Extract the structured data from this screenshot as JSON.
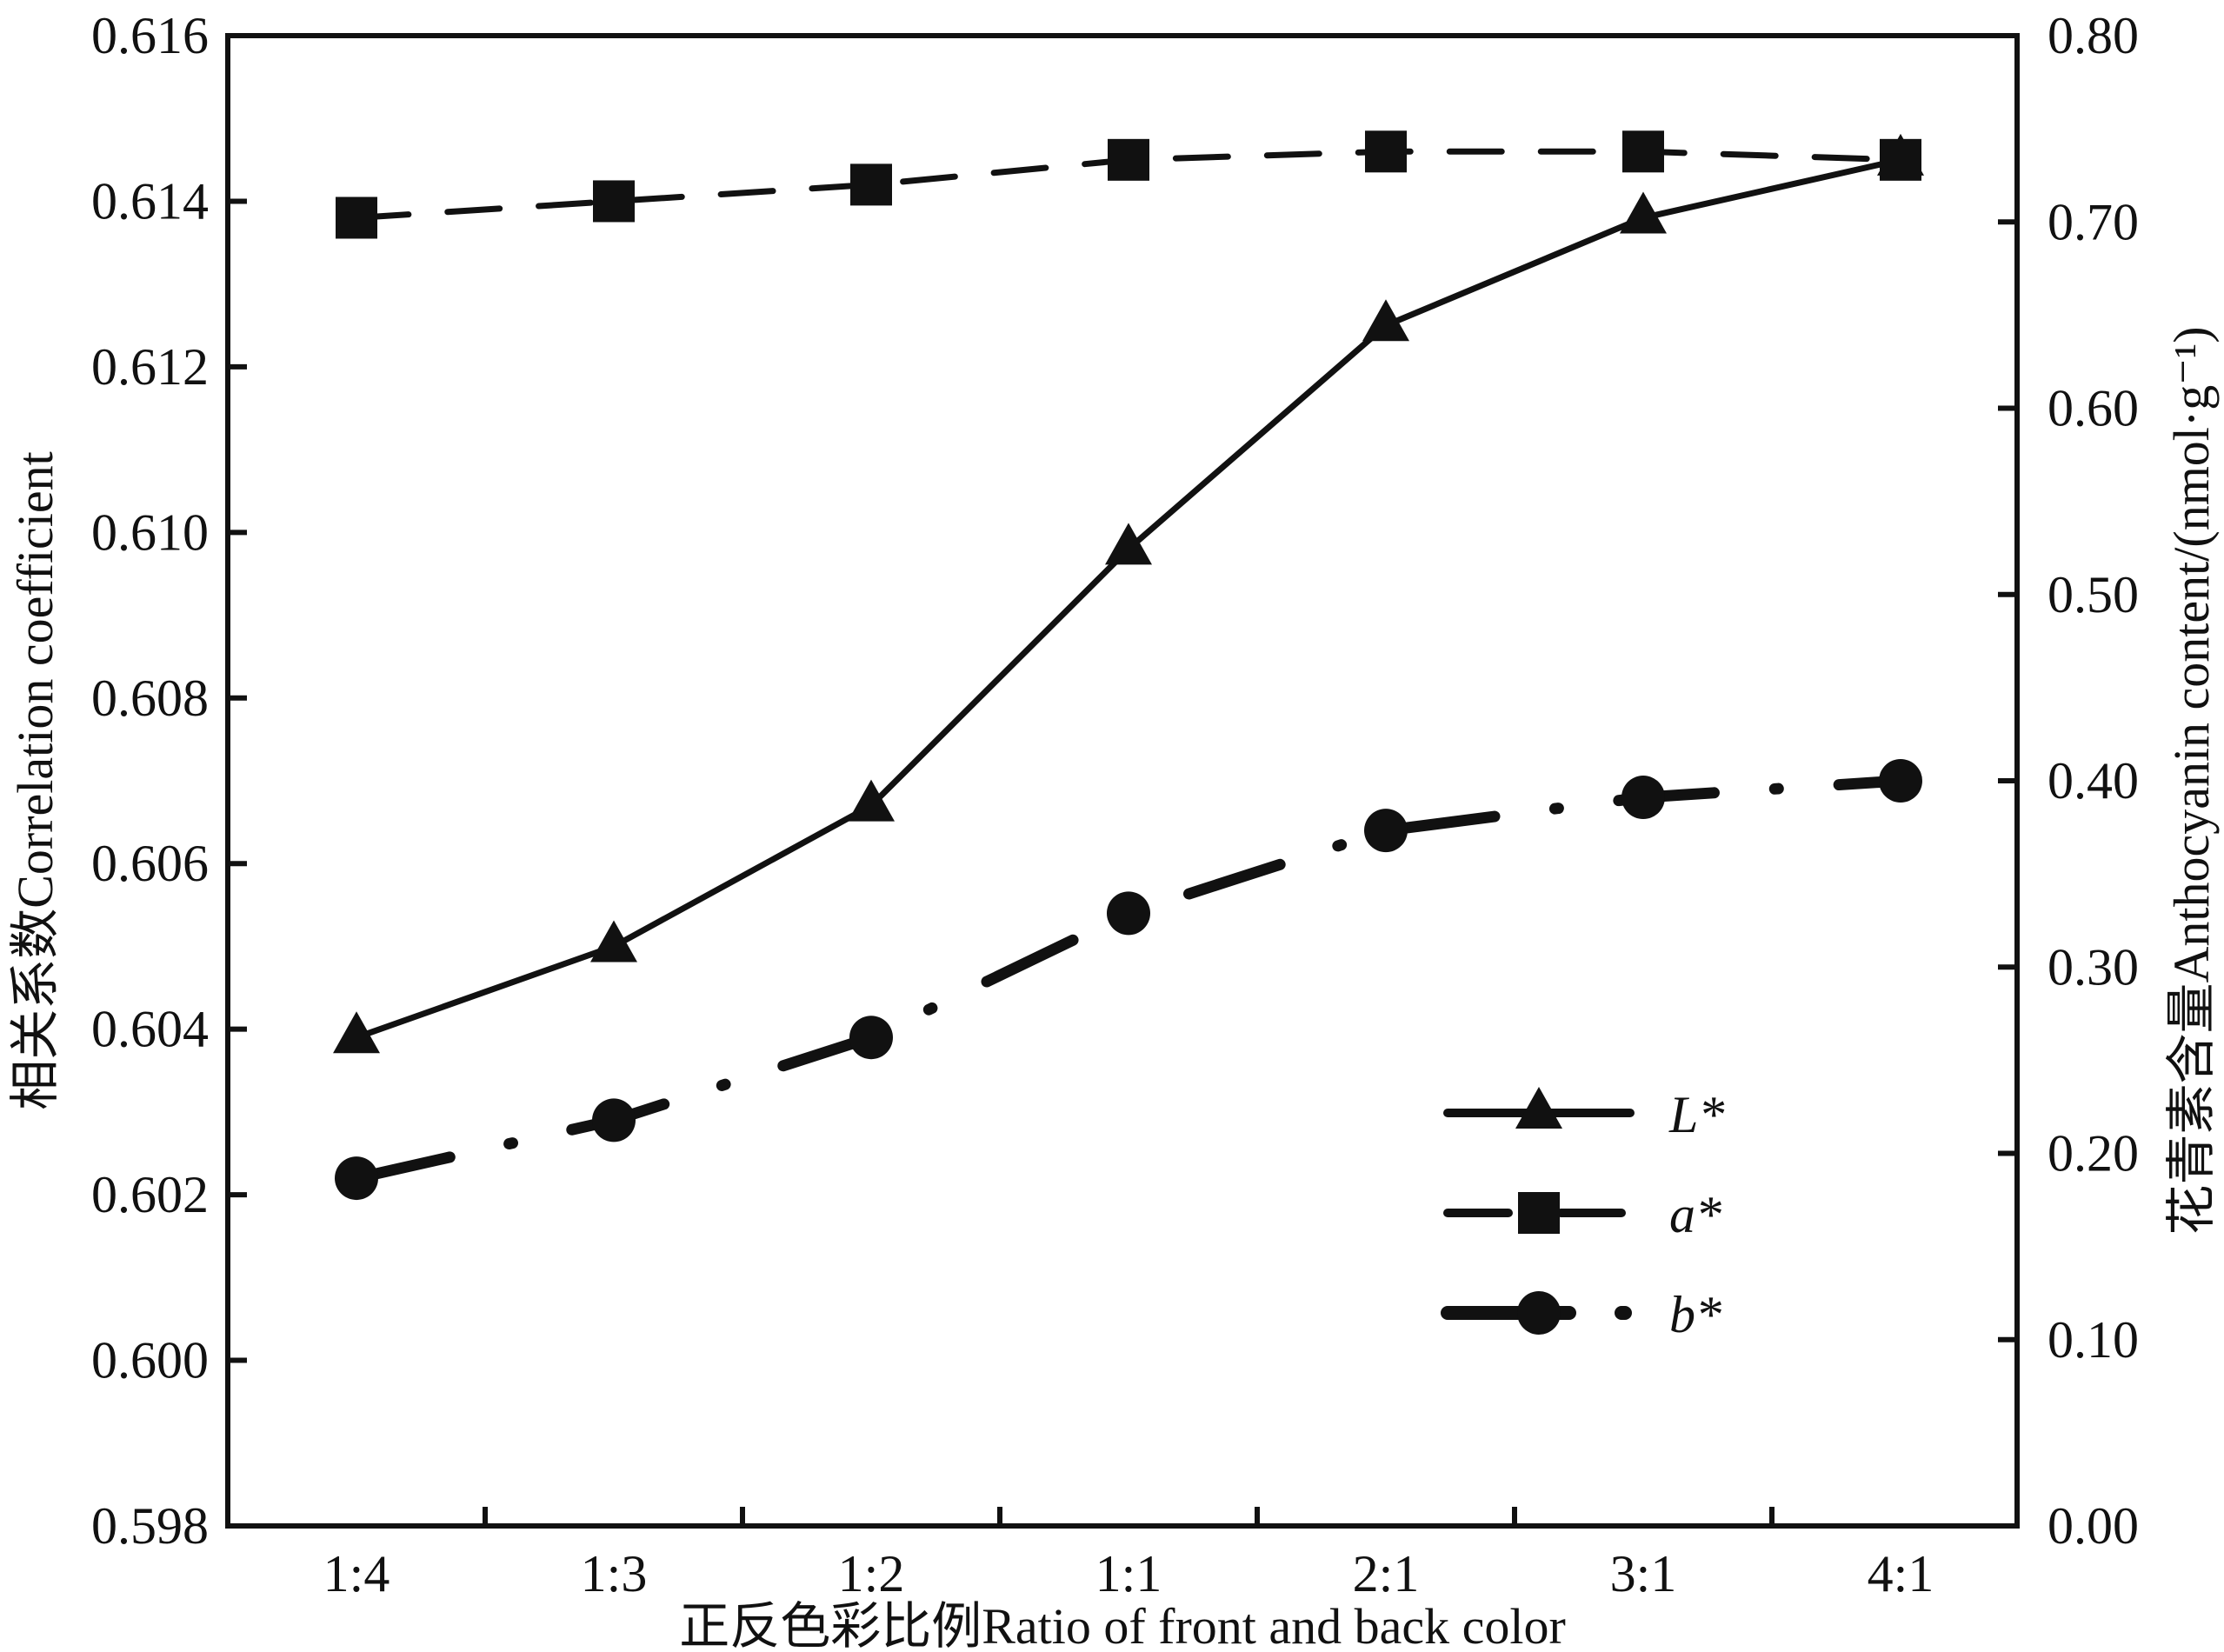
{
  "chart_data": {
    "type": "line",
    "title": "",
    "xlabel": "正反色彩比例Ratio of front and back color",
    "ylabel": "相关系数Correlation coefficient",
    "ylabel_right": "花青素含量Anthocyanin content/(nmol·g⁻¹)",
    "categories": [
      "1:4",
      "1:3",
      "1:2",
      "1:1",
      "2:1",
      "3:1",
      "4:1"
    ],
    "ylim": [
      0.598,
      0.616
    ],
    "yticks": [
      "0.598",
      "0.600",
      "0.602",
      "0.604",
      "0.606",
      "0.608",
      "0.610",
      "0.612",
      "0.614",
      "0.616"
    ],
    "ylim_right": [
      0.0,
      0.8
    ],
    "yticks_right": [
      "0.00",
      "0.10",
      "0.20",
      "0.30",
      "0.40",
      "0.50",
      "0.60",
      "0.70",
      "0.80"
    ],
    "grid": false,
    "legend_position": "bottom-right",
    "series": [
      {
        "name": "L*",
        "marker": "triangle",
        "line": "solid",
        "values": [
          0.6039,
          0.605,
          0.6067,
          0.6098,
          0.6125,
          0.6138,
          0.6145
        ]
      },
      {
        "name": "a*",
        "marker": "square",
        "line": "dashed",
        "values": [
          0.6138,
          0.614,
          0.6142,
          0.6145,
          0.6146,
          0.6146,
          0.6145
        ]
      },
      {
        "name": "b*",
        "marker": "circle",
        "line": "dash-dot",
        "values": [
          0.6022,
          0.6029,
          0.6039,
          0.6054,
          0.6064,
          0.6068,
          0.607
        ]
      }
    ],
    "colors": {
      "ink": "#111111"
    }
  }
}
